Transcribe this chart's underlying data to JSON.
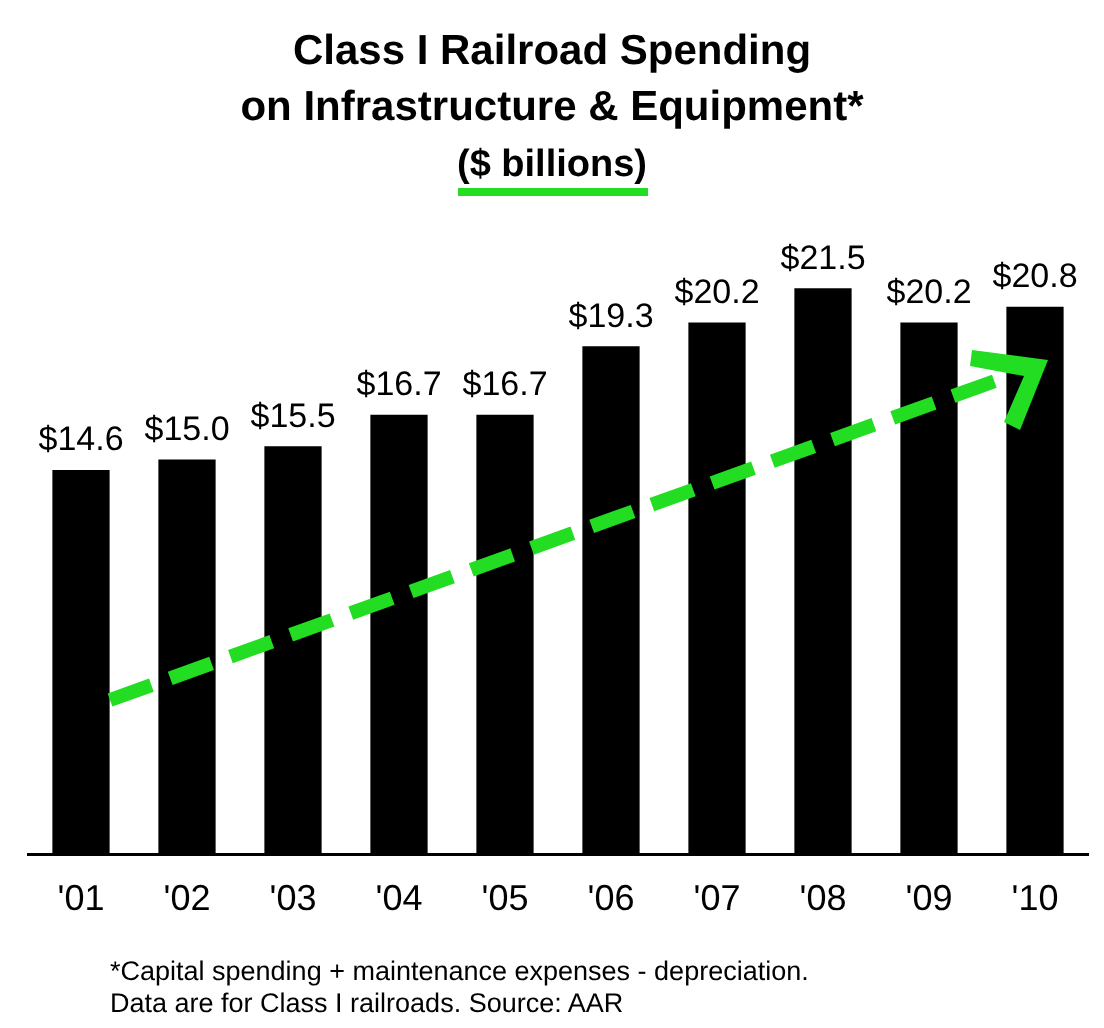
{
  "chart_data": {
    "type": "bar",
    "title": "Class I Railroad Spending\non Infrastructure & Equipment*",
    "subtitle": "($ billions)",
    "categories": [
      "'01",
      "'02",
      "'03",
      "'04",
      "'05",
      "'06",
      "'07",
      "'08",
      "'09",
      "'10"
    ],
    "values": [
      14.6,
      15.0,
      15.5,
      16.7,
      16.7,
      19.3,
      20.2,
      21.5,
      20.2,
      20.8
    ],
    "value_labels": [
      "$14.6",
      "$15.0",
      "$15.5",
      "$16.7",
      "$16.7",
      "$19.3",
      "$20.2",
      "$21.5",
      "$20.2",
      "$20.8"
    ],
    "color": "#000000",
    "tick_labels": "x",
    "grid": false,
    "legend": false,
    "annotations": [
      "*Capital spending + maintenance expenses - depreciation.",
      "Data are for Class I railroads.  Source: AAR"
    ]
  }
}
